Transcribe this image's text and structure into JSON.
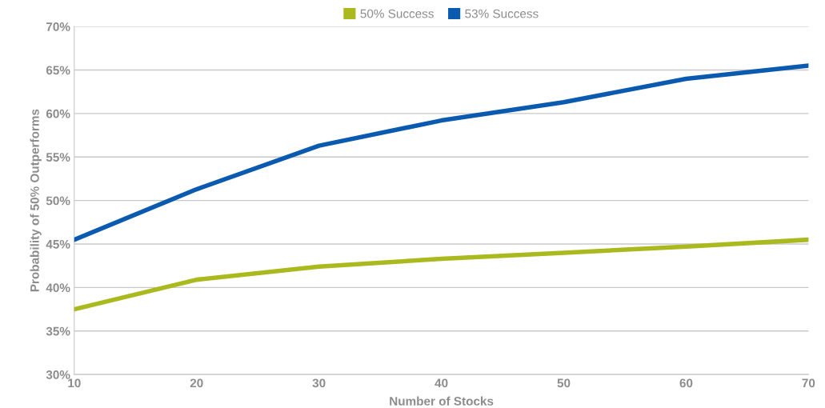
{
  "chart_data": {
    "type": "line",
    "xlabel": "Number of Stocks",
    "ylabel": "Probability of 50% Outperforms",
    "x": [
      10,
      20,
      30,
      40,
      50,
      60,
      70
    ],
    "series": [
      {
        "name": "50% Success",
        "color": "#a9b91e",
        "values": [
          37.5,
          40.9,
          42.4,
          43.3,
          44.0,
          44.7,
          45.5
        ]
      },
      {
        "name": "53% Success",
        "color": "#0a5bb0",
        "values": [
          45.5,
          51.3,
          56.3,
          59.2,
          61.3,
          64.0,
          65.5
        ]
      }
    ],
    "xlim": [
      10,
      70
    ],
    "xticks": [
      10,
      20,
      30,
      40,
      50,
      60,
      70
    ],
    "ylim": [
      30,
      70
    ],
    "yticks": [
      {
        "value": 30,
        "label": "30%"
      },
      {
        "value": 35,
        "label": "35%"
      },
      {
        "value": 40,
        "label": "40%"
      },
      {
        "value": 45,
        "label": "45%"
      },
      {
        "value": 50,
        "label": "50%"
      },
      {
        "value": 55,
        "label": "55%"
      },
      {
        "value": 60,
        "label": "60%"
      },
      {
        "value": 65,
        "label": "65%"
      },
      {
        "value": 70,
        "label": "70%"
      }
    ],
    "grid": "y",
    "legend": "top",
    "marker": "none",
    "line_style": "solid"
  }
}
